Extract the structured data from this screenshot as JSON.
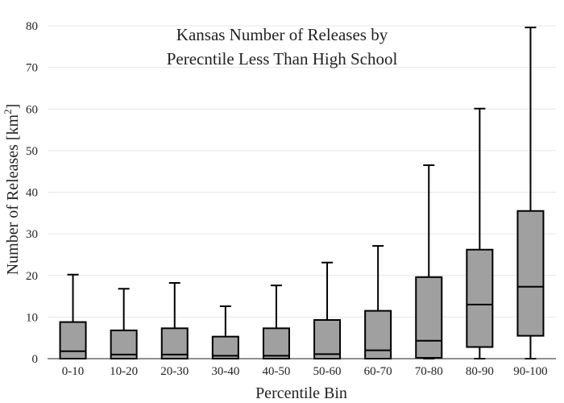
{
  "chart_data": {
    "type": "box",
    "title_lines": [
      "Kansas Number of Releases by",
      "Perecntile Less Than High School"
    ],
    "xlabel": "Percentile Bin",
    "ylabel_main": "Number of Releases  [km",
    "ylabel_sup": "2",
    "ylabel_end": "]",
    "ylim": [
      0,
      80
    ],
    "yticks": [
      0,
      10,
      20,
      30,
      40,
      50,
      60,
      70,
      80
    ],
    "grid": true,
    "box_color": "#a0a0a0",
    "categories": [
      "0-10",
      "10-20",
      "20-30",
      "30-40",
      "40-50",
      "50-60",
      "60-70",
      "70-80",
      "80-90",
      "90-100"
    ],
    "boxes": [
      {
        "min": 0,
        "q1": 0,
        "median": 1.8,
        "q3": 8.8,
        "max": 20.2
      },
      {
        "min": 0,
        "q1": 0,
        "median": 1.0,
        "q3": 6.8,
        "max": 16.8
      },
      {
        "min": 0,
        "q1": 0,
        "median": 1.0,
        "q3": 7.3,
        "max": 18.2
      },
      {
        "min": 0,
        "q1": 0,
        "median": 0.7,
        "q3": 5.3,
        "max": 12.6
      },
      {
        "min": 0,
        "q1": 0,
        "median": 0.7,
        "q3": 7.3,
        "max": 17.6
      },
      {
        "min": 0,
        "q1": 0,
        "median": 1.1,
        "q3": 9.3,
        "max": 23.1
      },
      {
        "min": 0,
        "q1": 0,
        "median": 2.0,
        "q3": 11.5,
        "max": 27.1
      },
      {
        "min": 0,
        "q1": 0.2,
        "median": 4.3,
        "q3": 19.6,
        "max": 46.5
      },
      {
        "min": 0,
        "q1": 2.8,
        "median": 13.0,
        "q3": 26.2,
        "max": 60.1
      },
      {
        "min": 0,
        "q1": 5.5,
        "median": 17.3,
        "q3": 35.5,
        "max": 79.6
      }
    ]
  }
}
